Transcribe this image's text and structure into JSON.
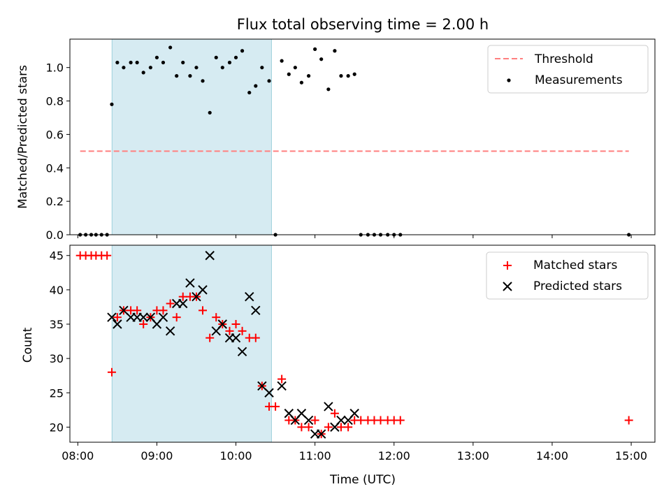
{
  "chart_data": [
    {
      "type": "scatter",
      "title": "Flux total observing time = 2.00 h",
      "xlabel": "",
      "ylabel": "Matched/Predicted stars",
      "xlim": [
        7.9,
        15.3
      ],
      "ylim": [
        0,
        1.17
      ],
      "yticks": [
        0.0,
        0.2,
        0.4,
        0.6,
        0.8,
        1.0
      ],
      "ytick_labels": [
        "0.0",
        "0.2",
        "0.4",
        "0.6",
        "0.8",
        "1.0"
      ],
      "shaded_region": [
        8.433,
        10.45
      ],
      "threshold": {
        "name": "Threshold",
        "value": 0.5,
        "x_range": [
          8.03,
          14.97
        ],
        "color": "#ff7f7f"
      },
      "series": [
        {
          "name": "Measurements",
          "color": "#000000",
          "points": [
            [
              8.03,
              0.0
            ],
            [
              8.1,
              0.0
            ],
            [
              8.17,
              0.0
            ],
            [
              8.23,
              0.0
            ],
            [
              8.3,
              0.0
            ],
            [
              8.37,
              0.0
            ],
            [
              8.43,
              0.78
            ],
            [
              8.5,
              1.03
            ],
            [
              8.58,
              1.0
            ],
            [
              8.67,
              1.03
            ],
            [
              8.75,
              1.03
            ],
            [
              8.83,
              0.97
            ],
            [
              8.92,
              1.0
            ],
            [
              9.0,
              1.06
            ],
            [
              9.08,
              1.03
            ],
            [
              9.17,
              1.12
            ],
            [
              9.25,
              0.95
            ],
            [
              9.33,
              1.03
            ],
            [
              9.42,
              0.95
            ],
            [
              9.5,
              1.0
            ],
            [
              9.58,
              0.92
            ],
            [
              9.67,
              0.73
            ],
            [
              9.75,
              1.06
            ],
            [
              9.83,
              1.0
            ],
            [
              9.92,
              1.03
            ],
            [
              10.0,
              1.06
            ],
            [
              10.08,
              1.1
            ],
            [
              10.17,
              0.85
            ],
            [
              10.25,
              0.89
            ],
            [
              10.33,
              1.0
            ],
            [
              10.42,
              0.92
            ],
            [
              10.5,
              0.0
            ],
            [
              10.58,
              1.04
            ],
            [
              10.67,
              0.96
            ],
            [
              10.75,
              1.0
            ],
            [
              10.83,
              0.91
            ],
            [
              10.92,
              0.95
            ],
            [
              11.0,
              1.11
            ],
            [
              11.08,
              1.05
            ],
            [
              11.17,
              0.87
            ],
            [
              11.25,
              1.1
            ],
            [
              11.33,
              0.95
            ],
            [
              11.42,
              0.95
            ],
            [
              11.5,
              0.96
            ],
            [
              11.58,
              0.0
            ],
            [
              11.67,
              0.0
            ],
            [
              11.75,
              0.0
            ],
            [
              11.83,
              0.0
            ],
            [
              11.92,
              0.0
            ],
            [
              12.0,
              0.0
            ],
            [
              12.08,
              0.0
            ],
            [
              14.97,
              0.0
            ]
          ]
        }
      ],
      "legend": {
        "position": "upper right",
        "entries": [
          "Threshold",
          "Measurements"
        ]
      }
    },
    {
      "type": "scatter",
      "title": "",
      "xlabel": "Time (UTC)",
      "ylabel": "Count",
      "xlim": [
        7.9,
        15.3
      ],
      "ylim": [
        17.8,
        46.5
      ],
      "yticks": [
        20,
        25,
        30,
        35,
        40,
        45
      ],
      "ytick_labels": [
        "20",
        "25",
        "30",
        "35",
        "40",
        "45"
      ],
      "xticks": [
        8,
        9,
        10,
        11,
        12,
        13,
        14,
        15
      ],
      "xtick_labels": [
        "08:00",
        "09:00",
        "10:00",
        "11:00",
        "12:00",
        "13:00",
        "14:00",
        "15:00"
      ],
      "shaded_region": [
        8.433,
        10.45
      ],
      "series": [
        {
          "name": "Matched stars",
          "marker": "plus",
          "color": "#ff0000",
          "points": [
            [
              8.03,
              45
            ],
            [
              8.1,
              45
            ],
            [
              8.17,
              45
            ],
            [
              8.23,
              45
            ],
            [
              8.3,
              45
            ],
            [
              8.37,
              45
            ],
            [
              8.43,
              28
            ],
            [
              8.5,
              36
            ],
            [
              8.58,
              37
            ],
            [
              8.67,
              37
            ],
            [
              8.75,
              37
            ],
            [
              8.83,
              35
            ],
            [
              8.92,
              36
            ],
            [
              9.0,
              37
            ],
            [
              9.08,
              37
            ],
            [
              9.17,
              38
            ],
            [
              9.25,
              36
            ],
            [
              9.33,
              39
            ],
            [
              9.42,
              39
            ],
            [
              9.5,
              39
            ],
            [
              9.58,
              37
            ],
            [
              9.67,
              33
            ],
            [
              9.75,
              36
            ],
            [
              9.83,
              35
            ],
            [
              9.92,
              34
            ],
            [
              10.0,
              35
            ],
            [
              10.08,
              34
            ],
            [
              10.17,
              33
            ],
            [
              10.25,
              33
            ],
            [
              10.33,
              26
            ],
            [
              10.42,
              23
            ],
            [
              10.5,
              23
            ],
            [
              10.58,
              27
            ],
            [
              10.67,
              21
            ],
            [
              10.75,
              21
            ],
            [
              10.83,
              20
            ],
            [
              10.92,
              20
            ],
            [
              11.0,
              21
            ],
            [
              11.08,
              19
            ],
            [
              11.17,
              20
            ],
            [
              11.25,
              22
            ],
            [
              11.33,
              20
            ],
            [
              11.42,
              20
            ],
            [
              11.5,
              21
            ],
            [
              11.58,
              21
            ],
            [
              11.67,
              21
            ],
            [
              11.75,
              21
            ],
            [
              11.83,
              21
            ],
            [
              11.92,
              21
            ],
            [
              12.0,
              21
            ],
            [
              12.08,
              21
            ],
            [
              14.97,
              21
            ]
          ]
        },
        {
          "name": "Predicted stars",
          "marker": "x",
          "color": "#000000",
          "points": [
            [
              8.43,
              36
            ],
            [
              8.5,
              35
            ],
            [
              8.58,
              37
            ],
            [
              8.67,
              36
            ],
            [
              8.75,
              36
            ],
            [
              8.83,
              36
            ],
            [
              8.92,
              36
            ],
            [
              9.0,
              35
            ],
            [
              9.08,
              36
            ],
            [
              9.17,
              34
            ],
            [
              9.25,
              38
            ],
            [
              9.33,
              38
            ],
            [
              9.42,
              41
            ],
            [
              9.5,
              39
            ],
            [
              9.58,
              40
            ],
            [
              9.67,
              45
            ],
            [
              9.75,
              34
            ],
            [
              9.83,
              35
            ],
            [
              9.92,
              33
            ],
            [
              10.0,
              33
            ],
            [
              10.08,
              31
            ],
            [
              10.17,
              39
            ],
            [
              10.25,
              37
            ],
            [
              10.33,
              26
            ],
            [
              10.42,
              25
            ],
            [
              10.58,
              26
            ],
            [
              10.67,
              22
            ],
            [
              10.75,
              21
            ],
            [
              10.83,
              22
            ],
            [
              10.92,
              21
            ],
            [
              11.0,
              19
            ],
            [
              11.08,
              19
            ],
            [
              11.17,
              23
            ],
            [
              11.25,
              20
            ],
            [
              11.33,
              21
            ],
            [
              11.42,
              21
            ],
            [
              11.5,
              22
            ]
          ]
        }
      ],
      "legend": {
        "position": "upper right",
        "entries": [
          "Matched stars",
          "Predicted stars"
        ]
      }
    }
  ]
}
